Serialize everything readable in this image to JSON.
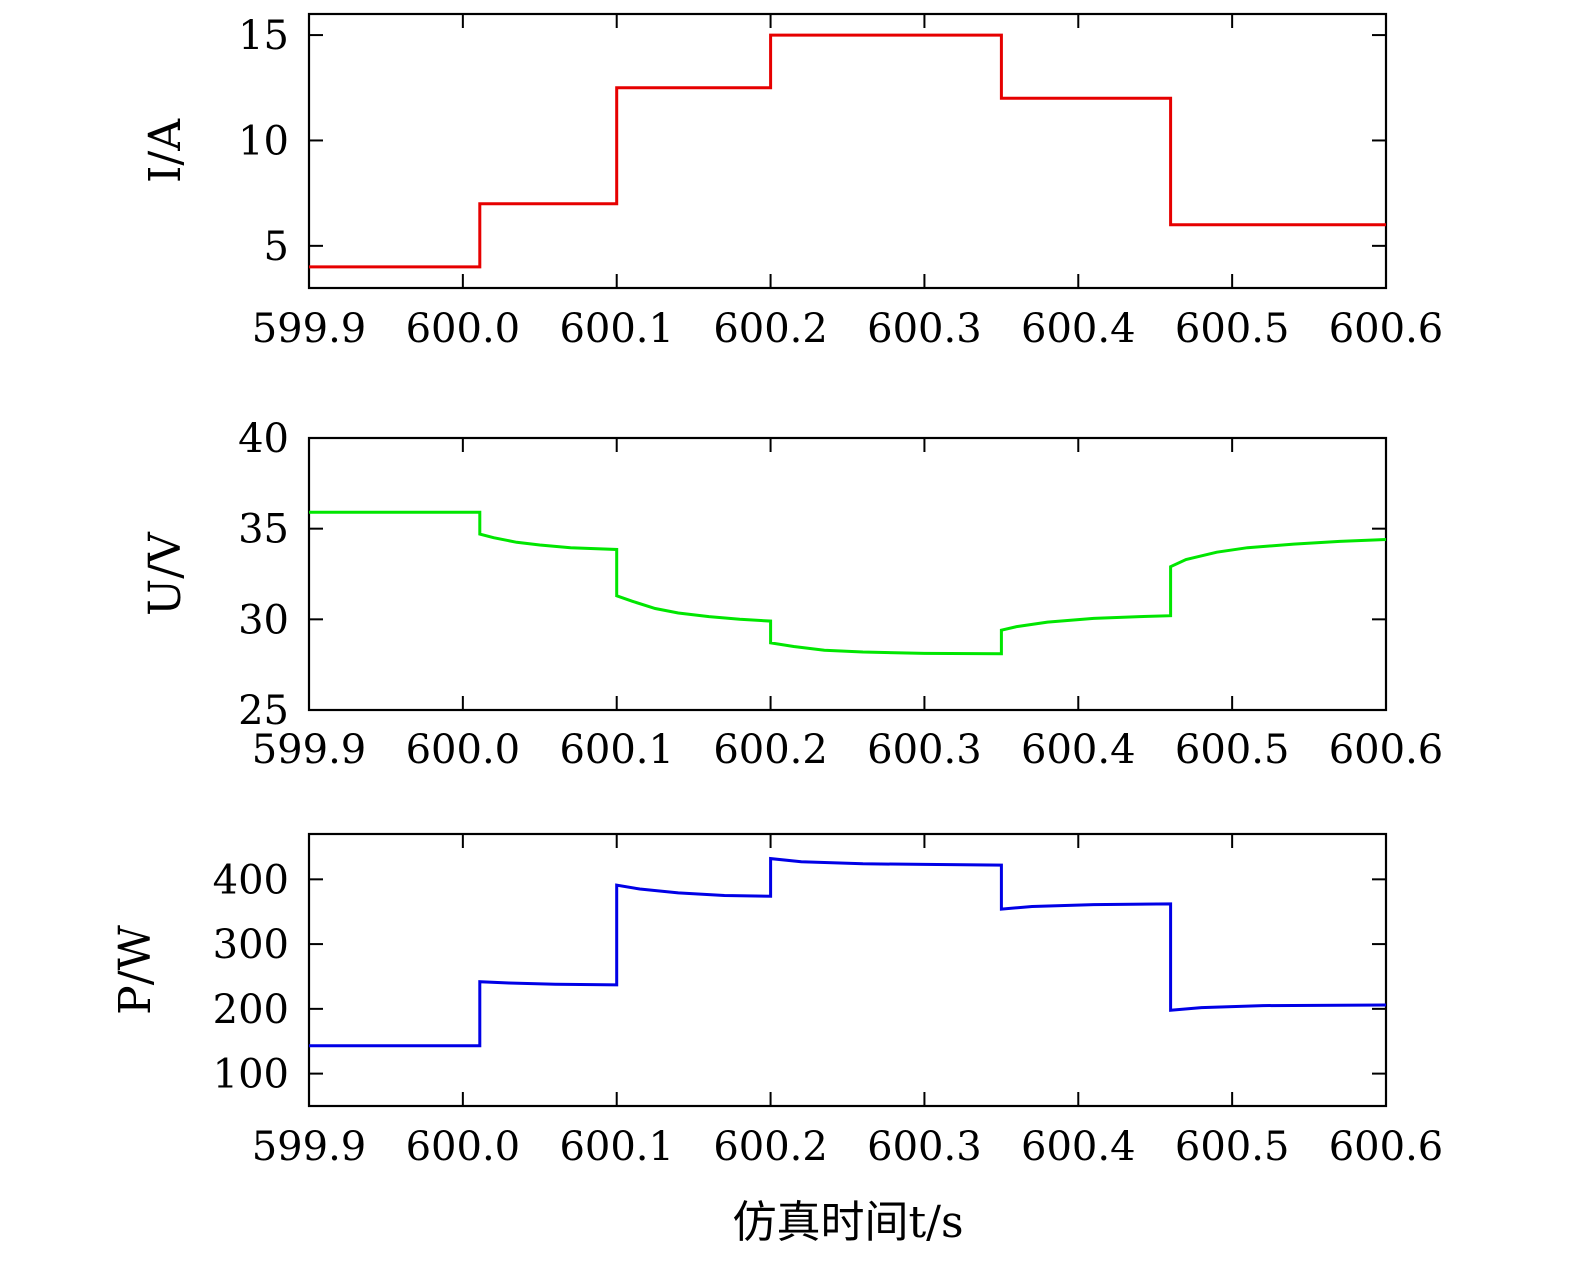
{
  "xlabel": "仿真时间t/s",
  "x_ticks": [
    "599.9",
    "600.0",
    "600.1",
    "600.2",
    "600.3",
    "600.4",
    "600.5",
    "600.6"
  ],
  "chart_data": [
    {
      "type": "line",
      "ylabel": "I/A",
      "xlim": [
        599.9,
        600.6
      ],
      "ylim": [
        3,
        16
      ],
      "y_ticks": [
        {
          "v": 5,
          "label": "5"
        },
        {
          "v": 10,
          "label": "10"
        },
        {
          "v": 15,
          "label": "15"
        }
      ],
      "series": [
        {
          "color": "#e60000",
          "points": [
            [
              599.9,
              4
            ],
            [
              600.011,
              4
            ],
            [
              600.011,
              7
            ],
            [
              600.1,
              7
            ],
            [
              600.1,
              12.5
            ],
            [
              600.2,
              12.5
            ],
            [
              600.2,
              15
            ],
            [
              600.35,
              15
            ],
            [
              600.35,
              12
            ],
            [
              600.46,
              12
            ],
            [
              600.46,
              6
            ],
            [
              600.6,
              6
            ]
          ]
        }
      ]
    },
    {
      "type": "line",
      "ylabel": "U/V",
      "xlim": [
        599.9,
        600.6
      ],
      "ylim": [
        25,
        40
      ],
      "y_ticks": [
        {
          "v": 25,
          "label": "25"
        },
        {
          "v": 30,
          "label": "30"
        },
        {
          "v": 35,
          "label": "35"
        },
        {
          "v": 40,
          "label": "40"
        }
      ],
      "series": [
        {
          "color": "#00e600",
          "points": [
            [
              599.9,
              35.9
            ],
            [
              600.011,
              35.9
            ],
            [
              600.011,
              34.7
            ],
            [
              600.02,
              34.5
            ],
            [
              600.035,
              34.25
            ],
            [
              600.05,
              34.1
            ],
            [
              600.07,
              33.95
            ],
            [
              600.1,
              33.85
            ],
            [
              600.1,
              31.3
            ],
            [
              600.11,
              31.0
            ],
            [
              600.125,
              30.6
            ],
            [
              600.14,
              30.35
            ],
            [
              600.16,
              30.15
            ],
            [
              600.18,
              30.0
            ],
            [
              600.2,
              29.9
            ],
            [
              600.2,
              28.7
            ],
            [
              600.215,
              28.5
            ],
            [
              600.235,
              28.3
            ],
            [
              600.26,
              28.2
            ],
            [
              600.3,
              28.12
            ],
            [
              600.35,
              28.1
            ],
            [
              600.35,
              29.4
            ],
            [
              600.36,
              29.6
            ],
            [
              600.38,
              29.85
            ],
            [
              600.41,
              30.05
            ],
            [
              600.44,
              30.15
            ],
            [
              600.46,
              30.2
            ],
            [
              600.46,
              32.9
            ],
            [
              600.47,
              33.3
            ],
            [
              600.49,
              33.7
            ],
            [
              600.51,
              33.95
            ],
            [
              600.54,
              34.15
            ],
            [
              600.57,
              34.3
            ],
            [
              600.6,
              34.4
            ]
          ]
        }
      ]
    },
    {
      "type": "line",
      "ylabel": "P/W",
      "xlim": [
        599.9,
        600.6
      ],
      "ylim": [
        50,
        470
      ],
      "y_ticks": [
        {
          "v": 100,
          "label": "100"
        },
        {
          "v": 200,
          "label": "200"
        },
        {
          "v": 300,
          "label": "300"
        },
        {
          "v": 400,
          "label": "400"
        }
      ],
      "series": [
        {
          "color": "#0000e6",
          "points": [
            [
              599.9,
              143
            ],
            [
              600.011,
              143
            ],
            [
              600.011,
              242
            ],
            [
              600.03,
              240
            ],
            [
              600.06,
              238
            ],
            [
              600.1,
              237
            ],
            [
              600.1,
              391
            ],
            [
              600.115,
              385
            ],
            [
              600.14,
              379
            ],
            [
              600.17,
              375
            ],
            [
              600.2,
              374
            ],
            [
              600.2,
              432
            ],
            [
              600.22,
              427
            ],
            [
              600.26,
              424
            ],
            [
              600.3,
              423
            ],
            [
              600.35,
              422
            ],
            [
              600.35,
              354
            ],
            [
              600.37,
              358
            ],
            [
              600.41,
              361
            ],
            [
              600.46,
              362
            ],
            [
              600.46,
              198
            ],
            [
              600.48,
              202
            ],
            [
              600.52,
              205
            ],
            [
              600.6,
              206
            ]
          ]
        }
      ]
    }
  ]
}
